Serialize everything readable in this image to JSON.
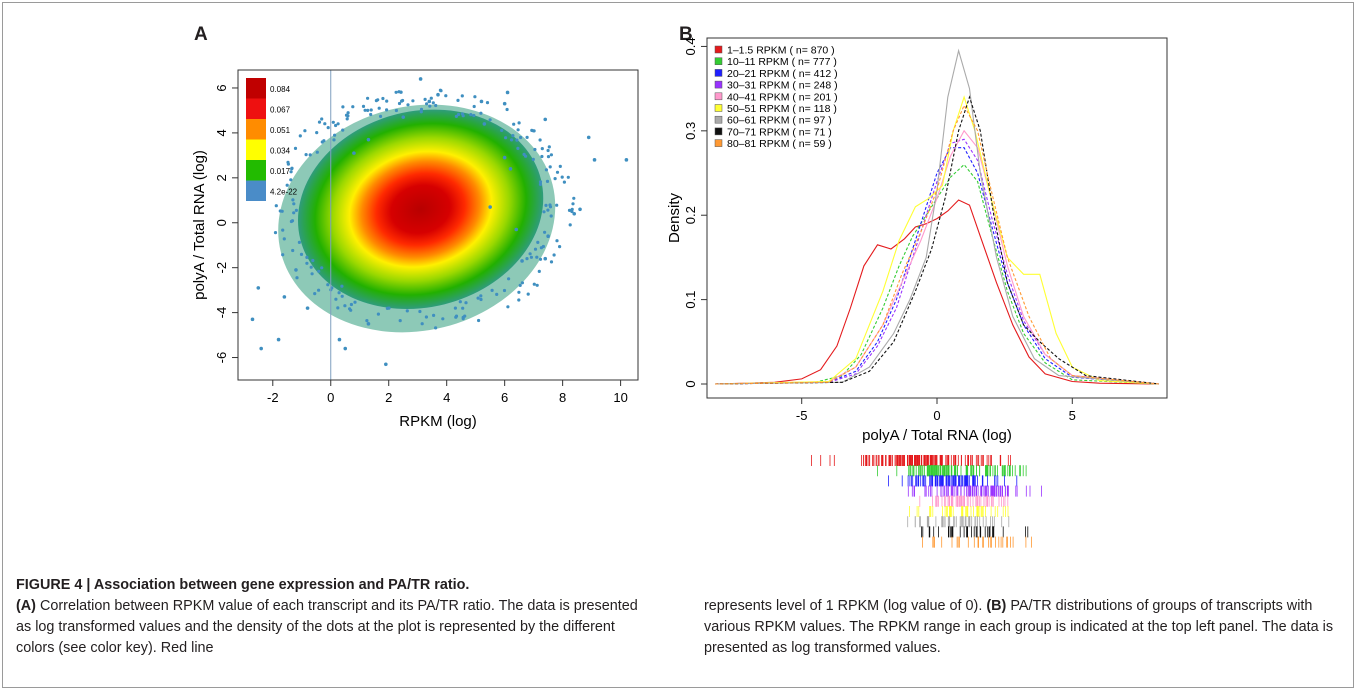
{
  "panel_a": {
    "letter": "A",
    "color_key": [
      "0.084",
      "0.067",
      "0.051",
      "0.034",
      "0.017",
      "4.2e-22"
    ],
    "color_key_colors": [
      "#c00000",
      "#ee1010",
      "#ff8c00",
      "#ffff00",
      "#22bb00",
      "#4a8cc8"
    ]
  },
  "panel_b": {
    "letter": "B",
    "legend": [
      {
        "label": "1–1.5 RPKM ( n= 870 )",
        "color": "#e41a1c"
      },
      {
        "label": "10–11 RPKM ( n= 777 )",
        "color": "#33cc33"
      },
      {
        "label": "20–21 RPKM ( n= 412 )",
        "color": "#1f1fff"
      },
      {
        "label": "30–31 RPKM ( n= 248 )",
        "color": "#9933ff"
      },
      {
        "label": "40–41 RPKM ( n= 201 )",
        "color": "#ff99cc"
      },
      {
        "label": "50–51 RPKM ( n= 118 )",
        "color": "#ffff33"
      },
      {
        "label": "60–61 RPKM ( n= 97 )",
        "color": "#aaaaaa"
      },
      {
        "label": "70–71 RPKM ( n= 71 )",
        "color": "#111111"
      },
      {
        "label": "80–81 RPKM ( n= 59 )",
        "color": "#ff9933"
      }
    ]
  },
  "chart_data": [
    {
      "type": "scatter",
      "title": "",
      "xlabel": "RPKM (log)",
      "ylabel": "polyA / Total RNA (log)",
      "xlim": [
        -3.2,
        10.6
      ],
      "ylim": [
        -7,
        6.8
      ],
      "xticks": [
        "-2",
        "0",
        "2",
        "4",
        "6",
        "8",
        "10"
      ],
      "yticks": [
        "-6",
        "-4",
        "-2",
        "0",
        "2",
        "4",
        "6"
      ],
      "vertical_line_x": 0,
      "density_center": {
        "x": 3.1,
        "y": 0.6
      },
      "points": [
        [
          -2.7,
          -4.3
        ],
        [
          -2.4,
          -5.6
        ],
        [
          -1.8,
          -5.2
        ],
        [
          -2.5,
          -2.9
        ],
        [
          -1.6,
          -3.3
        ],
        [
          -1.2,
          -2.1
        ],
        [
          -0.8,
          -3.8
        ],
        [
          0.3,
          -5.2
        ],
        [
          0.5,
          -5.6
        ],
        [
          1.9,
          -6.3
        ],
        [
          1.3,
          -4.5
        ],
        [
          3.1,
          6.4
        ],
        [
          3.7,
          5.7
        ],
        [
          3.4,
          5.4
        ],
        [
          5.2,
          5.4
        ],
        [
          6.1,
          5.8
        ],
        [
          6.0,
          5.3
        ],
        [
          7.4,
          4.6
        ],
        [
          8.9,
          3.8
        ],
        [
          9.1,
          2.8
        ],
        [
          10.2,
          2.8
        ],
        [
          8.6,
          0.6
        ],
        [
          8.4,
          0.4
        ],
        [
          7.5,
          -0.6
        ],
        [
          7.4,
          -1.6
        ],
        [
          6.6,
          -1.7
        ],
        [
          6.0,
          2.9
        ],
        [
          6.2,
          2.4
        ],
        [
          5.3,
          4.4
        ],
        [
          2.5,
          4.7
        ],
        [
          1.3,
          3.7
        ],
        [
          0.8,
          3.1
        ],
        [
          5.5,
          0.7
        ],
        [
          6.4,
          -0.3
        ]
      ]
    },
    {
      "type": "line",
      "title": "",
      "xlabel": "polyA / Total RNA (log)",
      "ylabel": "Density",
      "xlim": [
        -8.5,
        8.5
      ],
      "ylim": [
        0,
        0.41
      ],
      "xticks": [
        "-5",
        "0",
        "5"
      ],
      "yticks": [
        "0",
        "0.1",
        "0.2",
        "0.3",
        "0.4"
      ],
      "series": [
        {
          "name": "1–1.5 RPKM ( n= 870 )",
          "style": "solid",
          "x": [
            -8.2,
            -6,
            -5,
            -4.3,
            -3.7,
            -3.2,
            -2.7,
            -2.2,
            -1.7,
            -1.2,
            -0.8,
            -0.4,
            0,
            0.4,
            0.8,
            1.2,
            1.6,
            2.2,
            2.8,
            3.4,
            4,
            5,
            6,
            8.2
          ],
          "y": [
            0,
            0.002,
            0.006,
            0.017,
            0.045,
            0.09,
            0.14,
            0.165,
            0.16,
            0.172,
            0.186,
            0.19,
            0.196,
            0.205,
            0.218,
            0.212,
            0.175,
            0.12,
            0.07,
            0.032,
            0.012,
            0.003,
            0.001,
            0
          ]
        },
        {
          "name": "10–11 RPKM ( n= 777 )",
          "style": "dashed",
          "x": [
            -8.2,
            -4.5,
            -3.5,
            -2.8,
            -2,
            -1.4,
            -0.9,
            -0.4,
            0,
            0.5,
            1,
            1.5,
            2,
            2.6,
            3.2,
            4,
            5,
            8.2
          ],
          "y": [
            0,
            0.002,
            0.01,
            0.035,
            0.09,
            0.14,
            0.175,
            0.2,
            0.22,
            0.245,
            0.26,
            0.24,
            0.18,
            0.11,
            0.06,
            0.025,
            0.005,
            0
          ]
        },
        {
          "name": "20–21 RPKM ( n= 412 )",
          "style": "dashed",
          "x": [
            -8.2,
            -4,
            -3,
            -2.2,
            -1.5,
            -1,
            -0.5,
            0,
            0.5,
            1,
            1.5,
            2,
            2.6,
            3.2,
            4,
            5,
            8.2
          ],
          "y": [
            0,
            0.002,
            0.015,
            0.05,
            0.1,
            0.15,
            0.2,
            0.25,
            0.28,
            0.28,
            0.25,
            0.19,
            0.12,
            0.07,
            0.03,
            0.008,
            0
          ]
        },
        {
          "name": "30–31 RPKM ( n= 248 )",
          "style": "dashed",
          "x": [
            -8.2,
            -4,
            -3,
            -2.2,
            -1.5,
            -1,
            -0.5,
            0,
            0.5,
            1,
            1.5,
            2,
            2.6,
            3.2,
            4,
            5,
            8.2
          ],
          "y": [
            0,
            0.002,
            0.012,
            0.045,
            0.09,
            0.14,
            0.19,
            0.24,
            0.285,
            0.29,
            0.265,
            0.2,
            0.13,
            0.075,
            0.035,
            0.01,
            0
          ]
        },
        {
          "name": "40–41 RPKM ( n= 201 )",
          "style": "solid",
          "x": [
            -8.2,
            -4,
            -3,
            -2,
            -1.3,
            -0.6,
            0,
            0.5,
            1,
            1.5,
            2,
            2.6,
            3.2,
            4,
            5,
            8.2
          ],
          "y": [
            0,
            0.003,
            0.02,
            0.07,
            0.12,
            0.17,
            0.22,
            0.27,
            0.3,
            0.28,
            0.22,
            0.14,
            0.08,
            0.035,
            0.01,
            0
          ]
        },
        {
          "name": "50–51 RPKM ( n= 118 )",
          "style": "solid",
          "x": [
            -8.2,
            -4,
            -3,
            -2,
            -1.4,
            -0.8,
            -0.3,
            0.2,
            0.6,
            1,
            1.4,
            2,
            2.6,
            3.2,
            3.8,
            4.4,
            5,
            6,
            8.2
          ],
          "y": [
            0,
            0.003,
            0.03,
            0.11,
            0.17,
            0.21,
            0.22,
            0.235,
            0.3,
            0.34,
            0.3,
            0.22,
            0.15,
            0.13,
            0.13,
            0.06,
            0.02,
            0.004,
            0
          ]
        },
        {
          "name": "60–61 RPKM ( n= 97 )",
          "style": "solid",
          "x": [
            -8.2,
            -3.5,
            -2.5,
            -1.6,
            -1,
            -0.4,
            0,
            0.4,
            0.8,
            1.2,
            1.6,
            2.2,
            2.8,
            3.6,
            4.5,
            8.2
          ],
          "y": [
            0,
            0.002,
            0.02,
            0.06,
            0.1,
            0.15,
            0.23,
            0.34,
            0.395,
            0.35,
            0.25,
            0.15,
            0.08,
            0.03,
            0.01,
            0
          ]
        },
        {
          "name": "70–71 RPKM ( n= 71 )",
          "style": "dashed",
          "x": [
            -8.2,
            -3.5,
            -2.5,
            -1.6,
            -0.8,
            -0.2,
            0.3,
            0.8,
            1.2,
            1.6,
            2.1,
            2.6,
            3.2,
            3.8,
            4.5,
            5.5,
            8.2
          ],
          "y": [
            0,
            0.002,
            0.015,
            0.05,
            0.11,
            0.16,
            0.22,
            0.3,
            0.34,
            0.3,
            0.2,
            0.12,
            0.07,
            0.05,
            0.03,
            0.01,
            0
          ]
        },
        {
          "name": "80–81 RPKM ( n= 59 )",
          "style": "dashed",
          "x": [
            -8.2,
            -4,
            -3,
            -2,
            -1.3,
            -0.6,
            0,
            0.6,
            1,
            1.5,
            2,
            2.6,
            3.4,
            4.2,
            5,
            8.2
          ],
          "y": [
            0,
            0.002,
            0.02,
            0.07,
            0.13,
            0.18,
            0.23,
            0.3,
            0.33,
            0.3,
            0.23,
            0.15,
            0.08,
            0.03,
            0.01,
            0
          ]
        }
      ],
      "rug_ranges": [
        [
          -5.2,
          3.5
        ],
        [
          -3.5,
          4.8
        ],
        [
          -2.5,
          3.6
        ],
        [
          -2.2,
          4.8
        ],
        [
          -1.5,
          3.8
        ],
        [
          -2.0,
          3.6
        ],
        [
          -2.4,
          3.5
        ],
        [
          -1.5,
          4.2
        ],
        [
          -1.5,
          4.2
        ]
      ]
    }
  ],
  "caption": {
    "figure_label": "FIGURE 4 | Association between gene expression and PA/TR ratio.",
    "part_a_label": "(A)",
    "part_a_text": " Correlation between RPKM value of each transcript and its PA/TR ratio. The data is presented as log transformed values and the density of the dots at the plot is represented by the different colors (see color key). Red line",
    "part_a_cont": "represents level of 1 RPKM (log value of 0). ",
    "part_b_label": "(B)",
    "part_b_text": " PA/TR distributions of groups of transcripts with various RPKM values. The RPKM range in each group is indicated at the top left panel. The data is presented as log transformed values."
  }
}
